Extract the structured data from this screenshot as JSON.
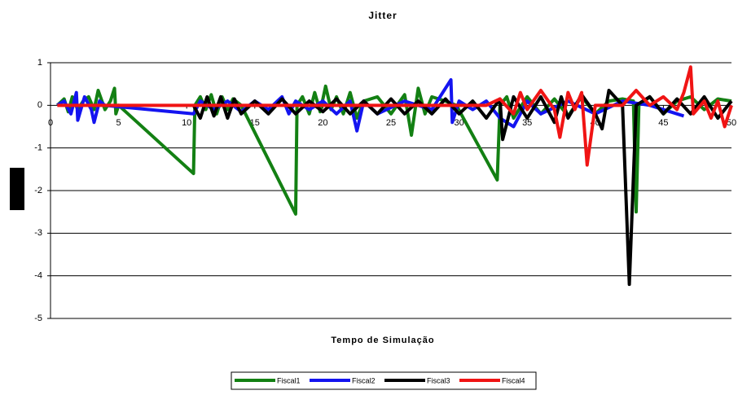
{
  "chart_data": {
    "type": "line",
    "title": "Jitter",
    "x_label": "Tempo de Simulação",
    "xlim": [
      0,
      50
    ],
    "ylim": [
      -5,
      1
    ],
    "xticks": [
      0,
      5,
      10,
      15,
      20,
      25,
      30,
      35,
      40,
      45,
      50
    ],
    "yticks": [
      -5,
      -4,
      -3,
      -2,
      -1,
      0,
      1
    ],
    "grid": true,
    "series": [
      {
        "name": "Fiscal1",
        "color": "#138013",
        "x": [
          0.5,
          1,
          1.3,
          1.6,
          2,
          2.4,
          2.8,
          3.2,
          3.5,
          4,
          4.4,
          4.7,
          4.8,
          5,
          10.5,
          10.6,
          11,
          11.4,
          11.8,
          12.2,
          12.6,
          13,
          13.4,
          14,
          18,
          18.1,
          18.5,
          19,
          19.4,
          19.8,
          20.2,
          20.6,
          21,
          21.5,
          22,
          22.5,
          23,
          24,
          25,
          26,
          26.5,
          27,
          27.5,
          28,
          29,
          29.8,
          32.8,
          33,
          33.5,
          34,
          35,
          36,
          37,
          38,
          39,
          40,
          41,
          42,
          42.8,
          43,
          43.2,
          44,
          45,
          46,
          47,
          48,
          49,
          50
        ],
        "values": [
          0,
          0.15,
          -0.15,
          0.2,
          -0.1,
          0.1,
          0.2,
          -0.1,
          0.35,
          -0.1,
          0.1,
          0.4,
          -0.2,
          0,
          -1.6,
          0,
          0.2,
          -0.1,
          0.25,
          -0.2,
          0.2,
          -0.1,
          0.15,
          0,
          -2.55,
          0,
          0.2,
          -0.2,
          0.3,
          -0.15,
          0.45,
          -0.1,
          0.2,
          -0.2,
          0.3,
          -0.3,
          0.1,
          0.2,
          -0.2,
          0.25,
          -0.7,
          0.4,
          -0.2,
          0.2,
          0.1,
          0,
          -1.75,
          0,
          0.2,
          -0.3,
          0.2,
          -0.2,
          0.15,
          -0.25,
          0.2,
          -0.2,
          0.1,
          0.15,
          0.1,
          -2.5,
          0,
          0.2,
          -0.2,
          0.1,
          0.2,
          -0.1,
          0.15,
          0.1
        ]
      },
      {
        "name": "Fiscal2",
        "color": "#1414f0",
        "x": [
          0.5,
          1,
          1.5,
          1.9,
          2,
          2.5,
          3,
          3.2,
          3.6,
          4,
          10.5,
          11,
          12,
          13,
          14,
          15,
          16,
          17,
          17.5,
          18,
          19,
          20,
          21,
          22,
          22.5,
          23,
          24,
          26,
          28,
          29.4,
          29.5,
          30,
          31,
          32,
          33,
          34,
          35,
          36,
          38,
          40,
          42,
          44,
          46.5
        ],
        "values": [
          0,
          0.1,
          -0.2,
          0.3,
          -0.35,
          0.2,
          -0.1,
          -0.4,
          0.1,
          0,
          -0.2,
          0.1,
          -0.1,
          0.1,
          -0.15,
          0.1,
          -0.1,
          0.2,
          -0.2,
          0.1,
          -0.1,
          0.1,
          -0.2,
          0.1,
          -0.6,
          0.1,
          -0.2,
          0.1,
          -0.1,
          0.6,
          -0.4,
          0.1,
          -0.1,
          0.1,
          -0.3,
          -0.5,
          0.1,
          -0.2,
          0.1,
          -0.2,
          0.1,
          0,
          -0.25
        ]
      },
      {
        "name": "Fiscal3",
        "color": "#000000",
        "x": [
          10.5,
          11,
          11.5,
          12,
          12.5,
          13,
          13.5,
          14,
          15,
          16,
          17,
          18,
          19,
          20,
          21,
          22,
          23,
          24,
          25,
          26,
          27,
          28,
          29,
          30,
          31,
          32,
          33,
          33.2,
          34,
          35,
          36,
          37,
          37.5,
          38,
          39,
          40,
          40.5,
          41,
          42,
          42.5,
          43,
          44,
          45,
          46,
          47,
          48,
          49,
          50
        ],
        "values": [
          0,
          -0.3,
          0.2,
          -0.25,
          0.2,
          -0.3,
          0.15,
          -0.2,
          0.1,
          -0.2,
          0.15,
          -0.2,
          0.1,
          -0.15,
          0.15,
          -0.2,
          0.1,
          -0.2,
          0.15,
          -0.2,
          0.1,
          -0.2,
          0.15,
          -0.2,
          0.1,
          -0.3,
          0.15,
          -0.8,
          0.2,
          -0.3,
          0.2,
          -0.4,
          0.2,
          -0.3,
          0.25,
          -0.2,
          -0.55,
          0.35,
          0,
          -4.2,
          0,
          0.2,
          -0.2,
          0.15,
          -0.2,
          0.2,
          -0.3,
          0.1
        ]
      },
      {
        "name": "Fiscal4",
        "color": "#f01414",
        "x": [
          0.5,
          32,
          33,
          34,
          34.5,
          35,
          36,
          37,
          37.4,
          38,
          38.5,
          39,
          39.4,
          40,
          41,
          42,
          43,
          44,
          45,
          46,
          46.5,
          47,
          47.2,
          48,
          48.5,
          49,
          49.5,
          50
        ],
        "values": [
          0,
          0,
          0.15,
          -0.2,
          0.3,
          -0.1,
          0.35,
          -0.1,
          -0.75,
          0.3,
          -0.1,
          0.3,
          -1.4,
          0,
          0,
          0,
          0.35,
          0,
          0.2,
          -0.1,
          0.3,
          0.9,
          -0.2,
          0.1,
          -0.3,
          0.1,
          -0.5,
          0
        ]
      }
    ]
  }
}
